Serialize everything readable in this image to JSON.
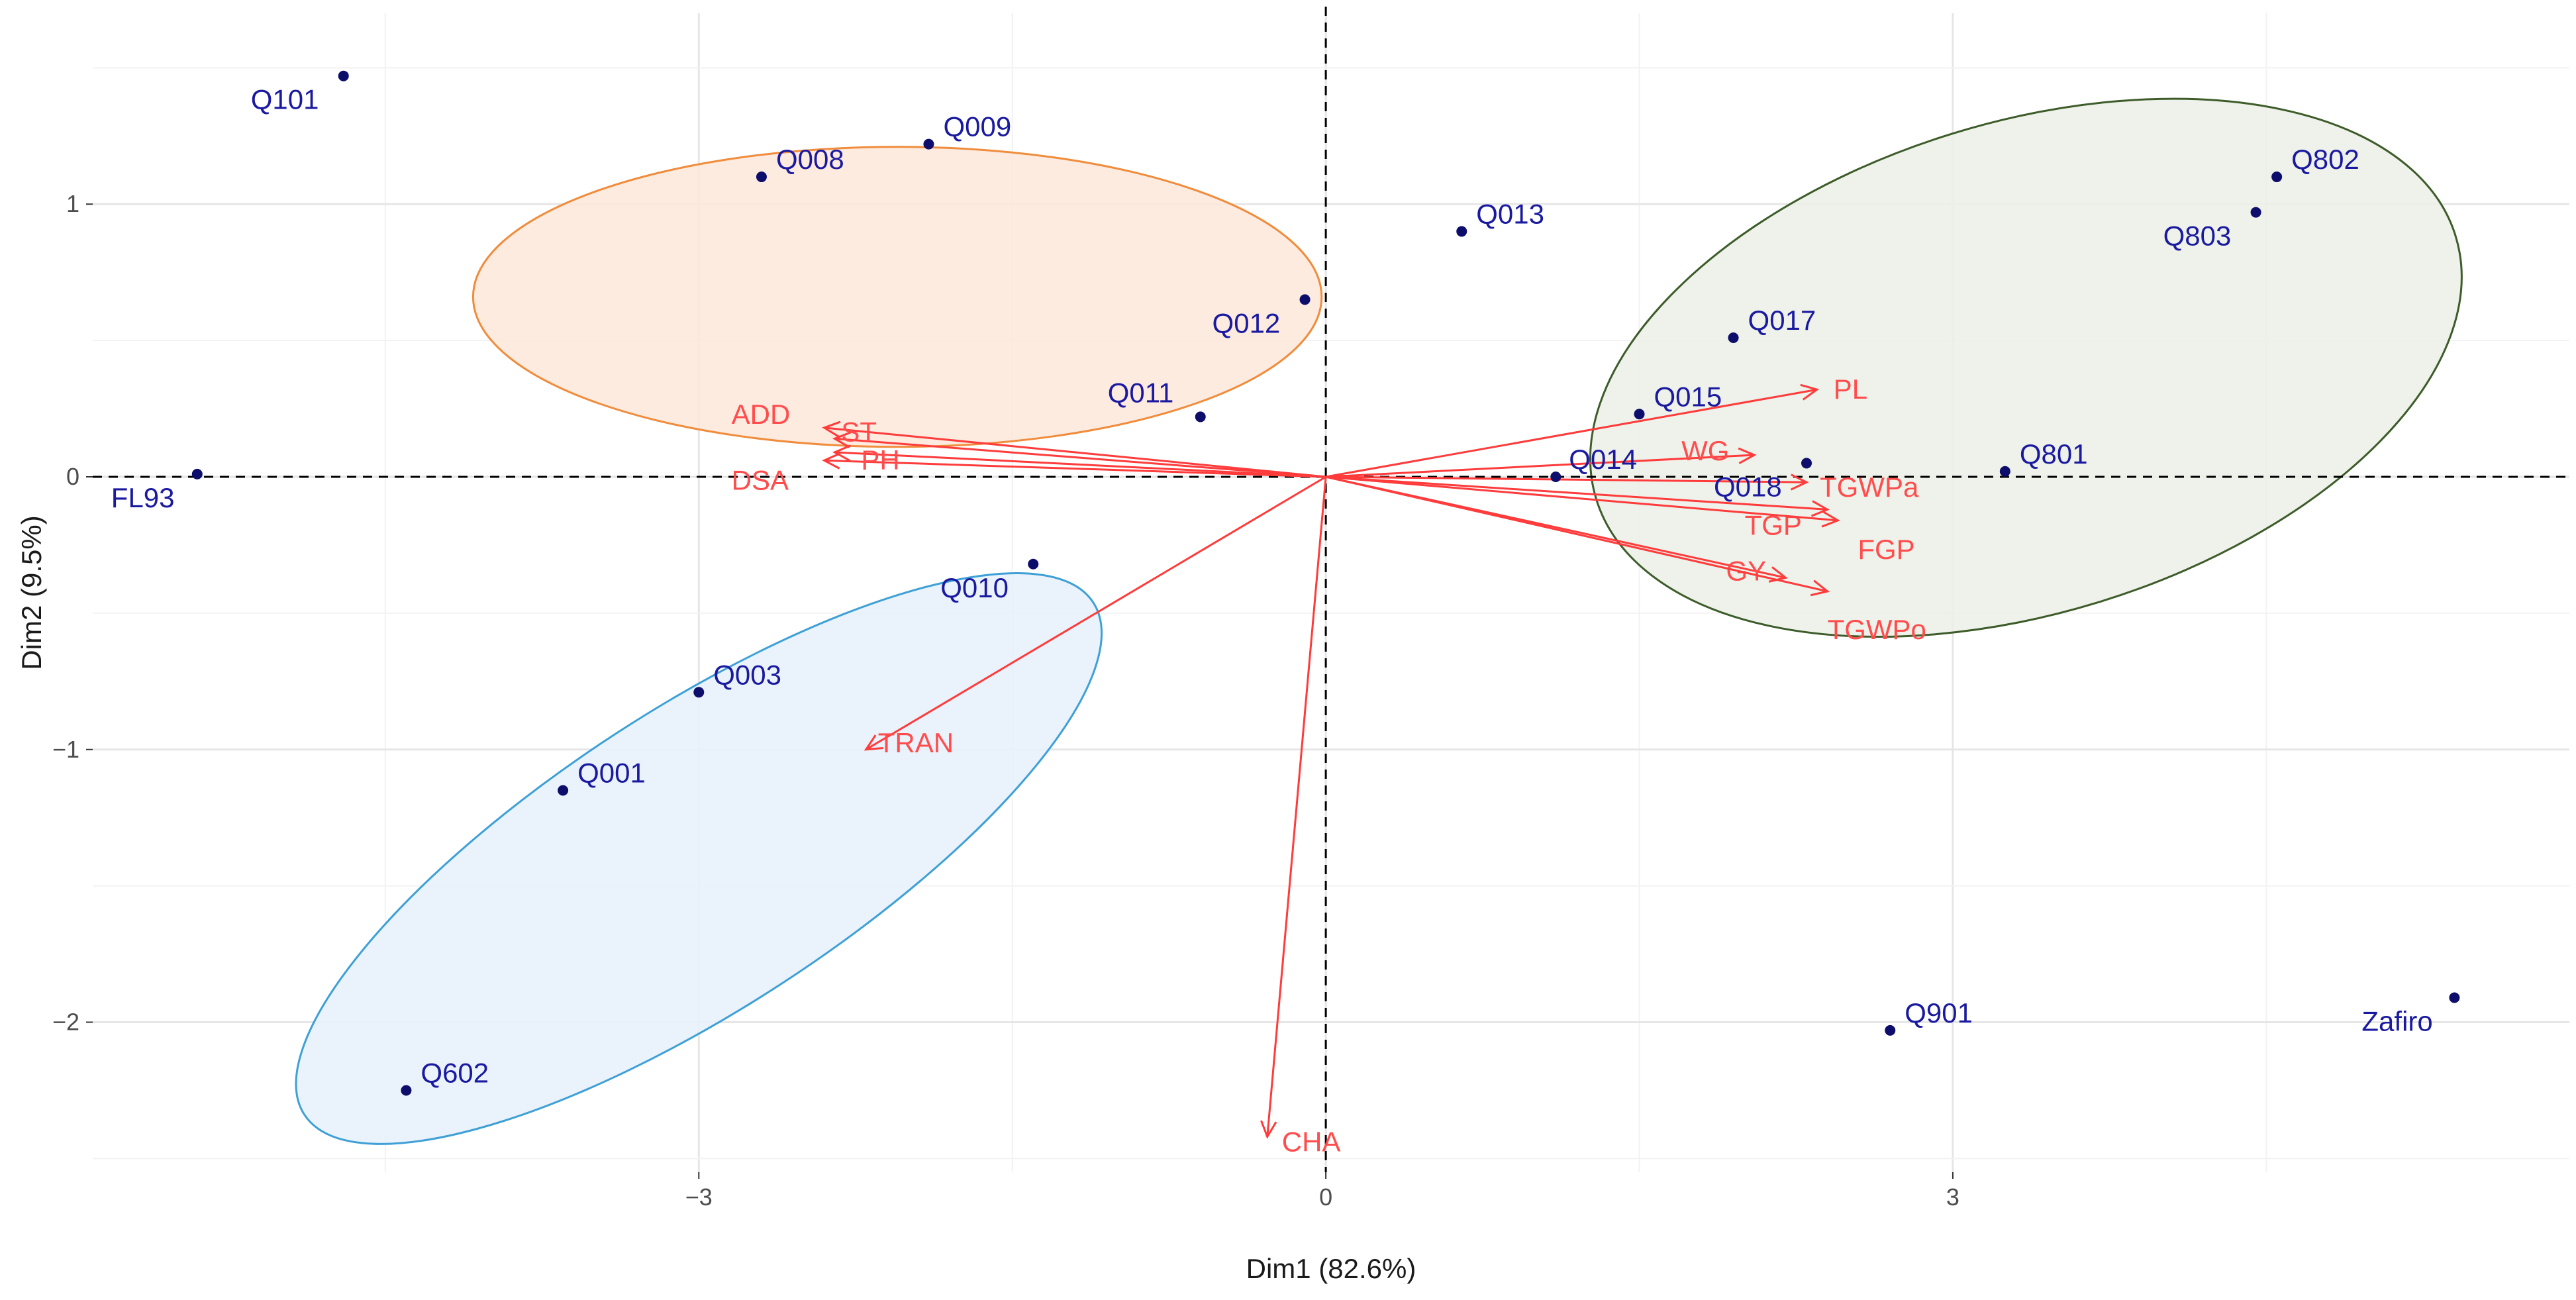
{
  "colors": {
    "point": "#0d0d6b",
    "point_label": "#1a1aa0",
    "arrow": "#ff3b3b",
    "grid_major": "#e6e6e6",
    "grid_minor": "#f2f2f2",
    "ellipse_orange": "#f08c3c",
    "ellipse_orange_fill": "#fde8da",
    "ellipse_green": "#3d5c2a",
    "ellipse_green_fill": "#ecf0e6",
    "ellipse_blue": "#3ea0d6",
    "ellipse_blue_fill": "#e6f1fa"
  },
  "chart_data": {
    "type": "scatter",
    "subtype": "pca-biplot",
    "xlabel": "Dim1 (82.6%)",
    "ylabel": "Dim2 (9.5%)",
    "xlim": [
      -5.9,
      5.95
    ],
    "ylim": [
      -2.55,
      1.7
    ],
    "x_ticks": [
      -3,
      0,
      3
    ],
    "y_ticks": [
      -2,
      -1,
      0,
      1
    ],
    "x_tick_labels": [
      "−3",
      "0",
      "3"
    ],
    "y_tick_labels": [
      "−2",
      "−1",
      "0",
      "1"
    ],
    "grid": true,
    "reference_lines": {
      "x": 0,
      "y": 0,
      "style": "dashed"
    },
    "points": [
      {
        "label": "Q101",
        "x": -4.7,
        "y": 1.47
      },
      {
        "label": "Q008",
        "x": -2.7,
        "y": 1.1
      },
      {
        "label": "Q009",
        "x": -1.9,
        "y": 1.22
      },
      {
        "label": "Q012",
        "x": -0.1,
        "y": 0.65
      },
      {
        "label": "Q013",
        "x": 0.65,
        "y": 0.9
      },
      {
        "label": "Q802",
        "x": 4.55,
        "y": 1.1
      },
      {
        "label": "Q803",
        "x": 4.45,
        "y": 0.97
      },
      {
        "label": "Q017",
        "x": 1.95,
        "y": 0.51
      },
      {
        "label": "Q015",
        "x": 1.5,
        "y": 0.23
      },
      {
        "label": "Q011",
        "x": -0.6,
        "y": 0.22
      },
      {
        "label": "Q014",
        "x": 1.1,
        "y": 0.0
      },
      {
        "label": "Q018",
        "x": 2.3,
        "y": 0.05
      },
      {
        "label": "Q801",
        "x": 3.25,
        "y": 0.02
      },
      {
        "label": "FL93",
        "x": -5.4,
        "y": 0.01
      },
      {
        "label": "Q010",
        "x": -1.4,
        "y": -0.32
      },
      {
        "label": "Q003",
        "x": -3.0,
        "y": -0.79
      },
      {
        "label": "Q001",
        "x": -3.65,
        "y": -1.15
      },
      {
        "label": "Q602",
        "x": -4.4,
        "y": -2.25
      },
      {
        "label": "Q901",
        "x": 2.7,
        "y": -2.03
      },
      {
        "label": "Zafiro",
        "x": 5.4,
        "y": -1.91
      }
    ],
    "variables": [
      {
        "label": "ADD",
        "x": -2.4,
        "y": 0.18
      },
      {
        "label": "ST",
        "x": -2.35,
        "y": 0.14
      },
      {
        "label": "DSA",
        "x": -2.4,
        "y": 0.06
      },
      {
        "label": "PH",
        "x": -2.35,
        "y": 0.09
      },
      {
        "label": "TRAN",
        "x": -2.2,
        "y": -1.0
      },
      {
        "label": "CHA",
        "x": -0.28,
        "y": -2.42
      },
      {
        "label": "PL",
        "x": 2.35,
        "y": 0.32
      },
      {
        "label": "WG",
        "x": 2.05,
        "y": 0.08
      },
      {
        "label": "TGWPa",
        "x": 2.3,
        "y": -0.02
      },
      {
        "label": "TGP",
        "x": 2.4,
        "y": -0.12
      },
      {
        "label": "FGP",
        "x": 2.45,
        "y": -0.16
      },
      {
        "label": "GY",
        "x": 2.2,
        "y": -0.37
      },
      {
        "label": "TGWPo",
        "x": 2.4,
        "y": -0.42
      }
    ],
    "ellipses": [
      {
        "group": "orange",
        "cx": -2.05,
        "cy": 0.66,
        "rx": 2.03,
        "ry": 0.55,
        "angle_deg": 0
      },
      {
        "group": "green",
        "cx": 3.35,
        "cy": 0.4,
        "rx": 2.15,
        "ry": 0.9,
        "angle_deg": 17
      },
      {
        "group": "blue",
        "cx": -3.0,
        "cy": -1.4,
        "rx": 2.25,
        "ry": 0.55,
        "angle_deg": 33
      }
    ]
  }
}
